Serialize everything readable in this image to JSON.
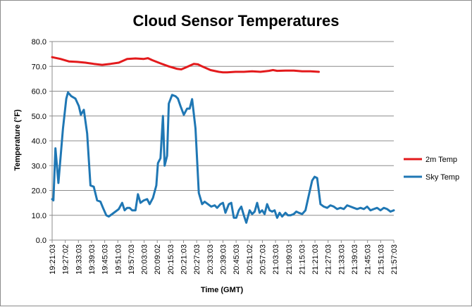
{
  "chart_data": {
    "type": "line",
    "title": "Cloud Sensor Temperatures",
    "xlabel": "Time (GMT)",
    "ylabel": "Temperature (°F)",
    "ylim": [
      0,
      80
    ],
    "y_ticks": [
      "0.0",
      "10.0",
      "20.0",
      "30.0",
      "40.0",
      "50.0",
      "60.0",
      "70.0",
      "80.0"
    ],
    "x_ticks": [
      "19:21:03",
      "19:27:02",
      "19:33:03",
      "19:39:03",
      "19:45:03",
      "19:51:03",
      "19:57:03",
      "20:03:03",
      "20:09:02",
      "20:15:03",
      "20:21:03",
      "20:27:03",
      "20:33:03",
      "20:39:03",
      "20:45:03",
      "20:51:02",
      "20:57:03",
      "21:03:03",
      "21:09:03",
      "21:15:03",
      "21:21:03",
      "21:27:03",
      "21:33:03",
      "21:39:03",
      "21:45:03",
      "21:51:03",
      "21:57:03"
    ],
    "grid": "horizontal",
    "legend_position": "right",
    "series": [
      {
        "name": "2m Temp",
        "color": "#e31a1c",
        "points": [
          [
            0,
            73.7
          ],
          [
            1,
            73.0
          ],
          [
            2,
            72.0
          ],
          [
            3,
            71.8
          ],
          [
            4,
            71.5
          ],
          [
            5,
            71.0
          ],
          [
            6,
            70.6
          ],
          [
            7,
            71.0
          ],
          [
            8,
            71.5
          ],
          [
            9,
            73.0
          ],
          [
            10,
            73.2
          ],
          [
            11,
            73.0
          ],
          [
            11.5,
            73.3
          ],
          [
            12,
            72.5
          ],
          [
            13,
            71.2
          ],
          [
            14,
            70.0
          ],
          [
            14.5,
            69.5
          ],
          [
            15,
            69.0
          ],
          [
            15.5,
            68.8
          ],
          [
            16,
            69.5
          ],
          [
            17,
            71.0
          ],
          [
            17.5,
            70.8
          ],
          [
            18,
            70.0
          ],
          [
            19,
            68.5
          ],
          [
            20,
            67.8
          ],
          [
            20.5,
            67.6
          ],
          [
            21,
            67.6
          ],
          [
            22,
            67.8
          ],
          [
            23,
            67.8
          ],
          [
            24,
            68.0
          ],
          [
            25,
            67.8
          ],
          [
            26,
            68.2
          ],
          [
            26.5,
            68.5
          ],
          [
            27,
            68.2
          ],
          [
            28,
            68.3
          ],
          [
            29,
            68.3
          ],
          [
            30,
            68.0
          ],
          [
            31,
            68.0
          ],
          [
            32,
            67.8
          ]
        ]
      },
      {
        "name": "Sky Temp",
        "color": "#1f77b4",
        "points": [
          [
            0,
            16.5
          ],
          [
            0.15,
            16.0
          ],
          [
            0.4,
            37.0
          ],
          [
            0.75,
            23.0
          ],
          [
            1.3,
            45.0
          ],
          [
            1.7,
            57.0
          ],
          [
            1.9,
            59.5
          ],
          [
            2.3,
            58.0
          ],
          [
            2.8,
            57.0
          ],
          [
            3.2,
            54.0
          ],
          [
            3.45,
            50.5
          ],
          [
            3.8,
            52.5
          ],
          [
            4.2,
            43.0
          ],
          [
            4.6,
            22.0
          ],
          [
            5.0,
            21.5
          ],
          [
            5.4,
            16.0
          ],
          [
            5.8,
            15.5
          ],
          [
            6.1,
            13.0
          ],
          [
            6.5,
            10.0
          ],
          [
            6.8,
            9.5
          ],
          [
            7.2,
            10.5
          ],
          [
            7.6,
            11.5
          ],
          [
            8.0,
            12.5
          ],
          [
            8.4,
            15.0
          ],
          [
            8.7,
            12.0
          ],
          [
            9.0,
            13.0
          ],
          [
            9.3,
            13.0
          ],
          [
            9.6,
            12.0
          ],
          [
            10.0,
            12.0
          ],
          [
            10.3,
            18.5
          ],
          [
            10.6,
            15.0
          ],
          [
            11.0,
            16.0
          ],
          [
            11.4,
            16.5
          ],
          [
            11.7,
            14.5
          ],
          [
            12.1,
            17.0
          ],
          [
            12.5,
            22.0
          ],
          [
            12.7,
            31.0
          ],
          [
            13.0,
            33.0
          ],
          [
            13.3,
            50.0
          ],
          [
            13.5,
            30.0
          ],
          [
            13.8,
            34.0
          ],
          [
            14.0,
            55.0
          ],
          [
            14.4,
            58.5
          ],
          [
            14.8,
            58.0
          ],
          [
            15.1,
            57.0
          ],
          [
            15.4,
            54.0
          ],
          [
            15.8,
            50.5
          ],
          [
            16.2,
            53.0
          ],
          [
            16.5,
            53.0
          ],
          [
            16.8,
            56.8
          ],
          [
            17.2,
            45.0
          ],
          [
            17.6,
            19.0
          ],
          [
            18.0,
            14.5
          ],
          [
            18.3,
            15.5
          ],
          [
            18.7,
            14.5
          ],
          [
            19.1,
            13.5
          ],
          [
            19.5,
            14.0
          ],
          [
            19.8,
            13.0
          ],
          [
            20.2,
            14.5
          ],
          [
            20.5,
            15.0
          ],
          [
            20.8,
            11.0
          ],
          [
            21.2,
            14.5
          ],
          [
            21.5,
            15.0
          ],
          [
            21.8,
            9.0
          ],
          [
            22.1,
            9.0
          ],
          [
            22.4,
            12.0
          ],
          [
            22.7,
            13.5
          ],
          [
            23.0,
            10.0
          ],
          [
            23.3,
            7.0
          ],
          [
            23.7,
            12.0
          ],
          [
            24.0,
            10.5
          ],
          [
            24.3,
            11.5
          ],
          [
            24.6,
            15.0
          ],
          [
            24.9,
            11.0
          ],
          [
            25.2,
            12.0
          ],
          [
            25.5,
            10.5
          ],
          [
            25.8,
            14.5
          ],
          [
            26.1,
            12.0
          ],
          [
            26.4,
            11.5
          ],
          [
            26.7,
            12.0
          ],
          [
            27.0,
            9.0
          ],
          [
            27.3,
            11.0
          ],
          [
            27.6,
            9.5
          ],
          [
            28.0,
            11.0
          ],
          [
            28.3,
            10.0
          ],
          [
            28.6,
            10.0
          ],
          [
            29.0,
            10.5
          ],
          [
            29.3,
            11.5
          ],
          [
            29.6,
            11.0
          ],
          [
            30.0,
            10.5
          ],
          [
            30.4,
            12.0
          ],
          [
            30.8,
            18.0
          ],
          [
            31.2,
            24.0
          ],
          [
            31.5,
            25.5
          ],
          [
            31.8,
            25.0
          ],
          [
            32.2,
            14.5
          ],
          [
            32.6,
            13.5
          ],
          [
            33.0,
            13.0
          ],
          [
            33.4,
            14.0
          ],
          [
            33.8,
            13.5
          ],
          [
            34.2,
            12.5
          ],
          [
            34.6,
            13.0
          ],
          [
            35.0,
            12.5
          ],
          [
            35.4,
            14.0
          ],
          [
            35.8,
            13.5
          ],
          [
            36.2,
            13.0
          ],
          [
            36.6,
            12.5
          ],
          [
            37.0,
            13.0
          ],
          [
            37.4,
            12.5
          ],
          [
            37.8,
            13.5
          ],
          [
            38.2,
            12.0
          ],
          [
            38.6,
            12.5
          ],
          [
            39.0,
            13.0
          ],
          [
            39.4,
            12.0
          ],
          [
            39.8,
            13.0
          ],
          [
            40.2,
            12.5
          ],
          [
            40.6,
            11.5
          ],
          [
            41.0,
            12.0
          ]
        ]
      }
    ]
  }
}
